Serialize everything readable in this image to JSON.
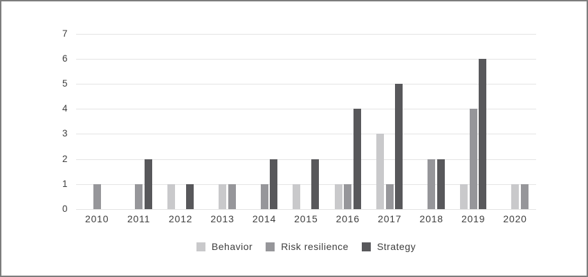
{
  "chart_data": {
    "type": "bar",
    "title": "",
    "categories": [
      "2010",
      "2011",
      "2012",
      "2013",
      "2014",
      "2015",
      "2016",
      "2017",
      "2018",
      "2019",
      "2020"
    ],
    "series": [
      {
        "name": "Behavior",
        "color": "#c9c9cb",
        "values": [
          0,
          0,
          1,
          1,
          0,
          1,
          1,
          3,
          0,
          1,
          1
        ]
      },
      {
        "name": "Risk resilience",
        "color": "#96969a",
        "values": [
          1,
          1,
          0,
          1,
          1,
          0,
          1,
          1,
          2,
          4,
          1
        ]
      },
      {
        "name": "Strategy",
        "color": "#58585b",
        "values": [
          0,
          2,
          1,
          0,
          2,
          2,
          4,
          5,
          2,
          6,
          0
        ]
      }
    ],
    "y_ticks": [
      7,
      6,
      5,
      4,
      3,
      2,
      1,
      0
    ],
    "ylim": [
      0,
      7
    ],
    "grid": "horizontal",
    "legend_position": "bottom",
    "colors": {
      "gridline": "#e4e4e4",
      "text": "#3d3d3d",
      "frame_border": "#7d7d7d",
      "background": "#ffffff"
    }
  }
}
